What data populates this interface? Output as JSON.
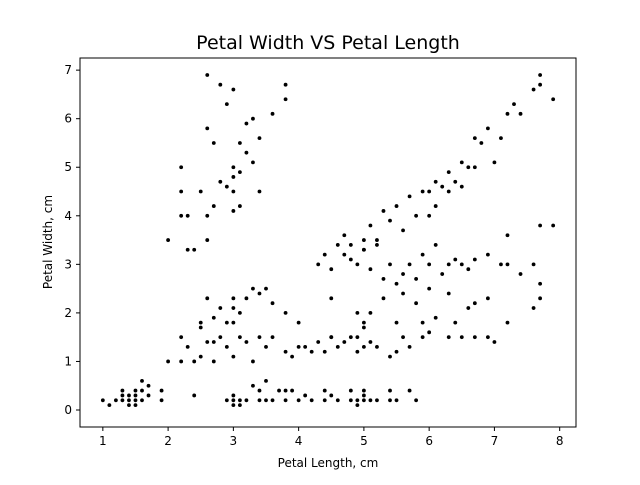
{
  "chart_data": {
    "type": "scatter",
    "title": "Petal Width VS Petal Length",
    "xlabel": "Petal Length, cm",
    "ylabel": "Petal Width, cm",
    "xlim": [
      0.65,
      8.25
    ],
    "ylim": [
      -0.35,
      7.25
    ],
    "xticks": [
      "1",
      "2",
      "3",
      "4",
      "5",
      "6",
      "7",
      "8"
    ],
    "yticks": [
      "0",
      "1",
      "2",
      "3",
      "4",
      "5",
      "6",
      "7"
    ],
    "grid": false,
    "point_color": "#000000",
    "series": [
      {
        "values": [
          [
            1.0,
            0.2
          ],
          [
            1.1,
            0.1
          ],
          [
            1.2,
            0.2
          ],
          [
            1.3,
            0.2
          ],
          [
            1.3,
            0.3
          ],
          [
            1.3,
            0.4
          ],
          [
            1.4,
            0.1
          ],
          [
            1.4,
            0.2
          ],
          [
            1.4,
            0.3
          ],
          [
            1.5,
            0.1
          ],
          [
            1.5,
            0.2
          ],
          [
            1.5,
            0.3
          ],
          [
            1.5,
            0.4
          ],
          [
            1.6,
            0.2
          ],
          [
            1.6,
            0.4
          ],
          [
            1.6,
            0.6
          ],
          [
            1.7,
            0.3
          ],
          [
            1.7,
            0.5
          ],
          [
            1.9,
            0.2
          ],
          [
            1.9,
            0.4
          ],
          [
            2.4,
            0.3
          ],
          [
            2.9,
            0.2
          ],
          [
            3.0,
            0.1
          ],
          [
            3.0,
            0.2
          ],
          [
            3.0,
            0.3
          ],
          [
            3.1,
            0.1
          ],
          [
            3.1,
            0.2
          ],
          [
            3.2,
            0.2
          ],
          [
            3.3,
            0.5
          ],
          [
            3.4,
            0.2
          ],
          [
            3.4,
            0.4
          ],
          [
            3.5,
            0.2
          ],
          [
            3.5,
            0.6
          ],
          [
            3.6,
            0.2
          ],
          [
            3.7,
            0.4
          ],
          [
            3.8,
            0.2
          ],
          [
            3.8,
            0.4
          ],
          [
            3.9,
            0.4
          ],
          [
            4.0,
            0.2
          ],
          [
            4.1,
            0.3
          ],
          [
            4.2,
            0.2
          ],
          [
            4.4,
            0.2
          ],
          [
            4.4,
            0.4
          ],
          [
            4.5,
            0.3
          ],
          [
            4.6,
            0.2
          ],
          [
            4.8,
            0.2
          ],
          [
            4.8,
            0.4
          ],
          [
            4.9,
            0.1
          ],
          [
            4.9,
            0.2
          ],
          [
            5.0,
            0.2
          ],
          [
            5.0,
            0.3
          ],
          [
            5.0,
            0.4
          ],
          [
            5.1,
            0.2
          ],
          [
            5.2,
            0.2
          ],
          [
            5.4,
            0.2
          ],
          [
            5.4,
            0.4
          ],
          [
            5.5,
            0.2
          ],
          [
            5.7,
            0.4
          ],
          [
            5.8,
            0.2
          ],
          [
            2.0,
            1.0
          ],
          [
            2.2,
            1.0
          ],
          [
            2.2,
            1.5
          ],
          [
            2.3,
            1.3
          ],
          [
            2.4,
            1.0
          ],
          [
            2.5,
            1.1
          ],
          [
            2.5,
            1.7
          ],
          [
            2.6,
            1.4
          ],
          [
            2.7,
            1.0
          ],
          [
            2.7,
            1.4
          ],
          [
            2.8,
            1.5
          ],
          [
            2.9,
            1.3
          ],
          [
            3.0,
            1.1
          ],
          [
            3.0,
            1.8
          ],
          [
            3.1,
            1.5
          ],
          [
            3.2,
            1.4
          ],
          [
            3.3,
            1.0
          ],
          [
            3.4,
            1.5
          ],
          [
            3.5,
            1.3
          ],
          [
            3.6,
            1.5
          ],
          [
            3.8,
            1.2
          ],
          [
            3.9,
            1.1
          ],
          [
            4.0,
            1.3
          ],
          [
            4.1,
            1.3
          ],
          [
            4.2,
            1.2
          ],
          [
            4.3,
            1.4
          ],
          [
            4.4,
            1.2
          ],
          [
            4.5,
            1.5
          ],
          [
            4.6,
            1.3
          ],
          [
            4.7,
            1.4
          ],
          [
            4.8,
            1.5
          ],
          [
            4.9,
            1.2
          ],
          [
            5.0,
            1.3
          ],
          [
            5.1,
            1.4
          ],
          [
            5.2,
            1.3
          ],
          [
            5.4,
            1.1
          ],
          [
            5.5,
            1.2
          ],
          [
            5.7,
            1.3
          ],
          [
            2.5,
            1.8
          ],
          [
            2.6,
            2.3
          ],
          [
            2.7,
            1.9
          ],
          [
            2.8,
            2.1
          ],
          [
            2.9,
            1.8
          ],
          [
            3.0,
            2.1
          ],
          [
            3.0,
            2.3
          ],
          [
            3.1,
            2.0
          ],
          [
            3.2,
            2.3
          ],
          [
            3.3,
            2.5
          ],
          [
            3.4,
            2.4
          ],
          [
            3.5,
            2.5
          ],
          [
            3.6,
            2.2
          ],
          [
            3.8,
            2.0
          ],
          [
            4.0,
            1.8
          ],
          [
            4.5,
            2.3
          ],
          [
            4.9,
            2.0
          ],
          [
            5.0,
            1.8
          ],
          [
            5.1,
            2.0
          ],
          [
            5.3,
            2.3
          ],
          [
            5.5,
            1.8
          ],
          [
            5.6,
            2.4
          ],
          [
            5.8,
            2.2
          ],
          [
            5.9,
            1.8
          ],
          [
            6.0,
            2.5
          ],
          [
            6.1,
            1.9
          ],
          [
            6.3,
            2.4
          ],
          [
            6.4,
            1.8
          ],
          [
            6.6,
            2.1
          ],
          [
            6.7,
            2.2
          ],
          [
            6.9,
            2.3
          ],
          [
            7.2,
            1.8
          ],
          [
            7.6,
            2.1
          ],
          [
            7.7,
            2.3
          ],
          [
            4.5,
            1.5
          ],
          [
            4.9,
            1.5
          ],
          [
            5.0,
            1.7
          ],
          [
            5.6,
            1.5
          ],
          [
            5.9,
            1.5
          ],
          [
            6.0,
            1.6
          ],
          [
            6.3,
            1.5
          ],
          [
            6.5,
            1.5
          ],
          [
            6.7,
            1.5
          ],
          [
            6.9,
            1.5
          ],
          [
            7.0,
            1.4
          ],
          [
            4.3,
            3.0
          ],
          [
            4.4,
            3.2
          ],
          [
            4.5,
            2.9
          ],
          [
            4.6,
            3.4
          ],
          [
            4.7,
            3.2
          ],
          [
            4.8,
            3.1
          ],
          [
            4.9,
            3.0
          ],
          [
            5.0,
            3.3
          ],
          [
            5.1,
            2.9
          ],
          [
            5.2,
            3.4
          ],
          [
            5.3,
            2.7
          ],
          [
            5.4,
            3.0
          ],
          [
            5.5,
            2.6
          ],
          [
            5.6,
            2.8
          ],
          [
            5.7,
            3.0
          ],
          [
            5.8,
            2.7
          ],
          [
            5.9,
            3.2
          ],
          [
            6.0,
            3.0
          ],
          [
            6.1,
            3.4
          ],
          [
            6.2,
            2.8
          ],
          [
            6.3,
            3.0
          ],
          [
            6.4,
            3.1
          ],
          [
            6.5,
            3.0
          ],
          [
            6.6,
            2.9
          ],
          [
            6.7,
            3.1
          ],
          [
            6.9,
            3.2
          ],
          [
            7.1,
            3.0
          ],
          [
            7.2,
            3.0
          ],
          [
            7.4,
            2.8
          ],
          [
            7.6,
            3.0
          ],
          [
            7.7,
            2.6
          ],
          [
            7.9,
            3.8
          ],
          [
            7.7,
            3.8
          ],
          [
            7.2,
            3.6
          ],
          [
            4.7,
            3.6
          ],
          [
            4.8,
            3.4
          ],
          [
            5.0,
            3.5
          ],
          [
            5.0,
            3.3
          ],
          [
            5.1,
            3.8
          ],
          [
            5.2,
            3.5
          ],
          [
            5.3,
            4.1
          ],
          [
            5.4,
            3.9
          ],
          [
            5.5,
            4.2
          ],
          [
            5.6,
            3.7
          ],
          [
            5.7,
            4.4
          ],
          [
            5.8,
            4.0
          ],
          [
            5.9,
            4.5
          ],
          [
            6.0,
            4.5
          ],
          [
            6.1,
            4.7
          ],
          [
            6.2,
            4.6
          ],
          [
            6.3,
            4.9
          ],
          [
            6.4,
            4.7
          ],
          [
            6.5,
            5.1
          ],
          [
            6.6,
            5.0
          ],
          [
            6.7,
            5.6
          ],
          [
            6.8,
            5.5
          ],
          [
            6.9,
            5.8
          ],
          [
            7.0,
            5.1
          ],
          [
            7.1,
            5.6
          ],
          [
            7.2,
            6.1
          ],
          [
            7.3,
            6.3
          ],
          [
            7.4,
            6.1
          ],
          [
            7.6,
            6.6
          ],
          [
            7.7,
            6.9
          ],
          [
            7.7,
            6.7
          ],
          [
            7.9,
            6.4
          ],
          [
            6.0,
            4.0
          ],
          [
            6.3,
            4.5
          ],
          [
            6.5,
            4.6
          ],
          [
            6.7,
            5.0
          ],
          [
            6.1,
            4.2
          ],
          [
            2.0,
            3.5
          ],
          [
            2.2,
            4.0
          ],
          [
            2.2,
            4.5
          ],
          [
            2.3,
            4.0
          ],
          [
            2.3,
            3.3
          ],
          [
            2.4,
            3.3
          ],
          [
            2.5,
            4.5
          ],
          [
            2.6,
            4.0
          ],
          [
            2.6,
            3.5
          ],
          [
            2.7,
            4.2
          ],
          [
            2.8,
            4.7
          ],
          [
            2.9,
            4.6
          ],
          [
            3.0,
            4.8
          ],
          [
            3.0,
            5.0
          ],
          [
            3.0,
            4.5
          ],
          [
            3.0,
            4.1
          ],
          [
            3.1,
            5.5
          ],
          [
            3.1,
            4.9
          ],
          [
            3.2,
            5.9
          ],
          [
            3.2,
            5.3
          ],
          [
            3.3,
            6.0
          ],
          [
            3.3,
            5.1
          ],
          [
            3.4,
            5.6
          ],
          [
            3.4,
            4.5
          ],
          [
            3.6,
            6.1
          ],
          [
            3.8,
            6.7
          ],
          [
            3.8,
            6.4
          ],
          [
            2.6,
            6.9
          ],
          [
            2.9,
            6.3
          ],
          [
            2.8,
            6.7
          ],
          [
            3.0,
            6.6
          ],
          [
            2.7,
            5.5
          ],
          [
            2.2,
            5.0
          ],
          [
            2.6,
            5.8
          ],
          [
            3.1,
            4.2
          ]
        ]
      }
    ]
  }
}
